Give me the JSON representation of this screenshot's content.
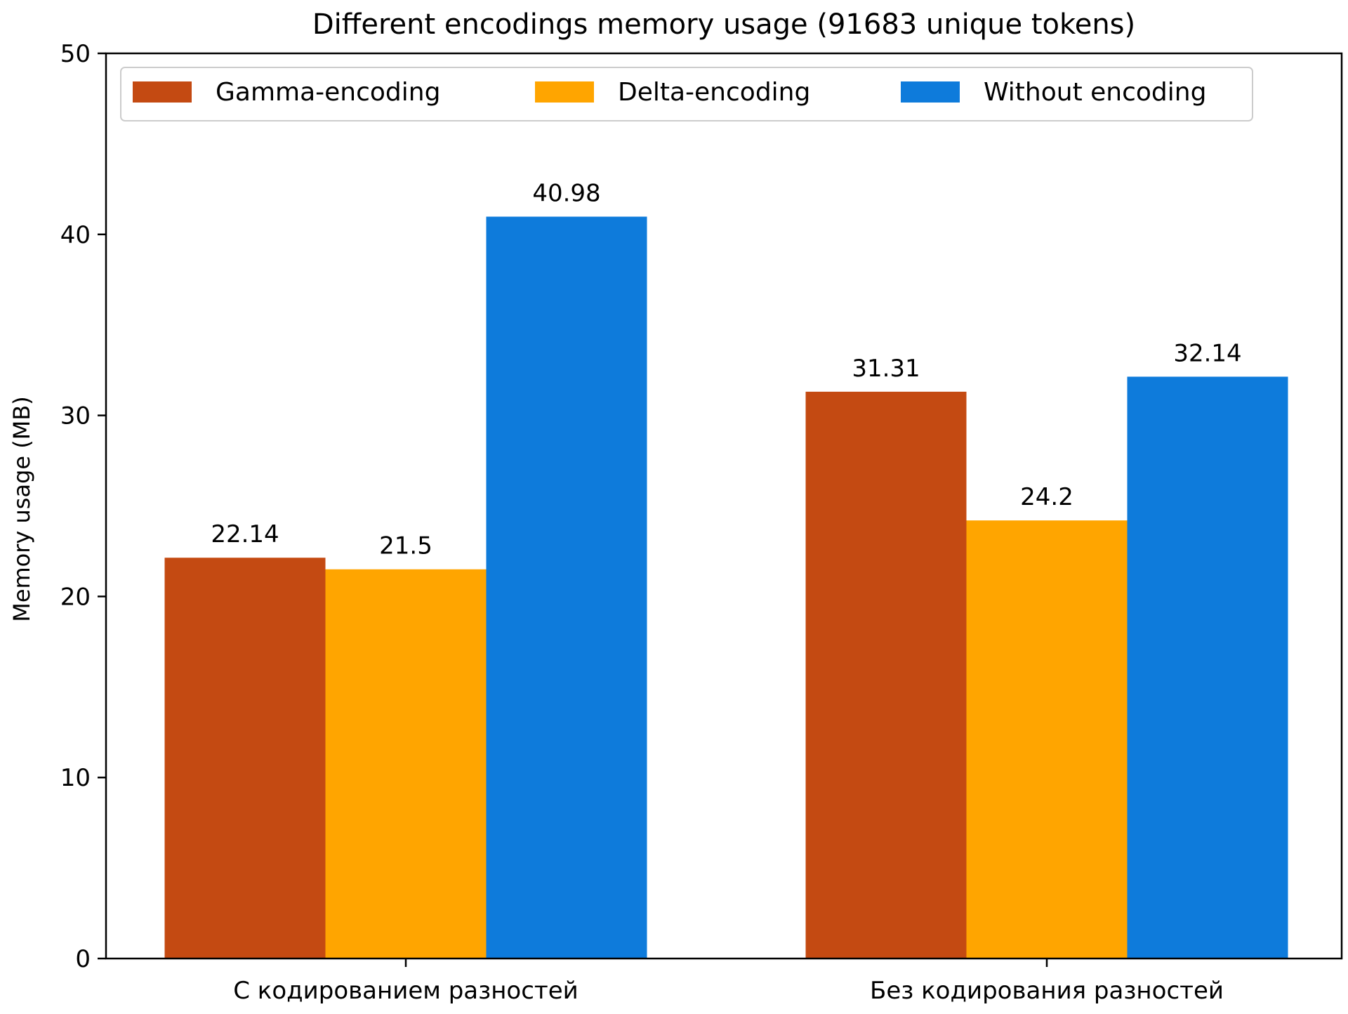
{
  "chart_data": {
    "type": "bar",
    "title": "Different encodings memory usage (91683 unique tokens)",
    "xlabel": "",
    "ylabel": "Memory usage (MB)",
    "ylim": [
      0,
      50
    ],
    "yticks": [
      0,
      10,
      20,
      30,
      40,
      50
    ],
    "categories": [
      "С кодированием разностей",
      "Без кодирования разностей"
    ],
    "series": [
      {
        "name": "Gamma-encoding",
        "color": "#c44a12",
        "values": [
          22.14,
          31.31
        ]
      },
      {
        "name": "Delta-encoding",
        "color": "#ffa500",
        "values": [
          21.5,
          24.2
        ]
      },
      {
        "name": "Without encoding",
        "color": "#0e7bdb",
        "values": [
          40.98,
          32.14
        ]
      }
    ],
    "legend": {
      "placement": "top"
    },
    "grid": false
  }
}
